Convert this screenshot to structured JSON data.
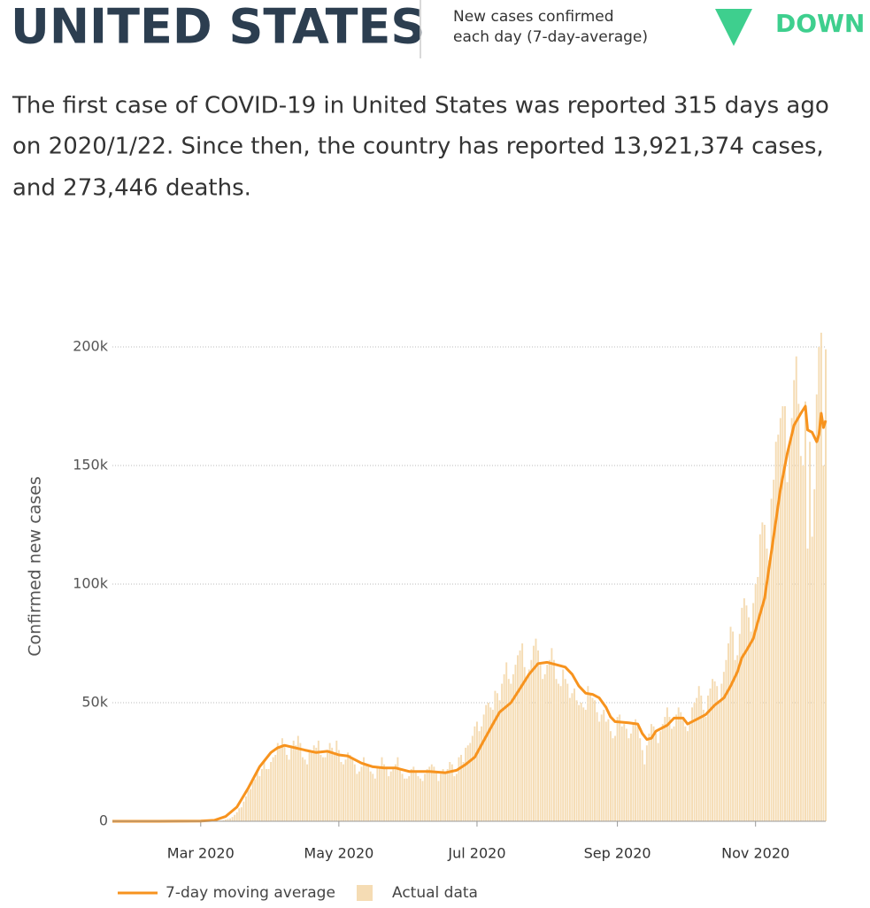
{
  "header": {
    "title": "UNITED STATES",
    "subtitle_lines": [
      "New cases confirmed",
      "each day (7-day-average)"
    ],
    "trend": "DOWN"
  },
  "description_lines": [
    "The first case of COVID-19 in United States was reported 315 days ago",
    "on 2020/1/22. Since then, the country has reported 13,921,374 cases,",
    "and 273,446 deaths."
  ],
  "chart_data": {
    "type": "line",
    "y_label": "Confirmed new cases",
    "xlim": [
      0,
      315
    ],
    "xticks": [
      {
        "value": 39,
        "label": "Mar 2020"
      },
      {
        "value": 100,
        "label": "May 2020"
      },
      {
        "value": 161,
        "label": "Jul 2020"
      },
      {
        "value": 223,
        "label": "Sep 2020"
      },
      {
        "value": 284,
        "label": "Nov 2020"
      }
    ],
    "ylim": [
      0,
      200000
    ],
    "yticks": [
      0,
      {
        "value": 50000,
        "label": "50k"
      },
      {
        "value": 100000,
        "label": "100k"
      },
      {
        "value": 150000,
        "label": "150k"
      },
      {
        "value": 200000,
        "label": "200k"
      }
    ],
    "grid": true,
    "series": [
      {
        "name": "7-day moving average",
        "color": "#f7931e",
        "kind": "line",
        "x": [
          0,
          20,
          39,
          45,
          50,
          55,
          60,
          65,
          70,
          73,
          76,
          85,
          90,
          95,
          100,
          104,
          110,
          115,
          120,
          125,
          131,
          140,
          147,
          152,
          156,
          160,
          164,
          168,
          171,
          176,
          180,
          184,
          188,
          192,
          196,
          200,
          203,
          206,
          209,
          212,
          215,
          218,
          220,
          222,
          228,
          232,
          234,
          236,
          238,
          240,
          245,
          248,
          252,
          254,
          258,
          262,
          266,
          270,
          273,
          276,
          278,
          280,
          283,
          285,
          288,
          292,
          295,
          298,
          301,
          304,
          306,
          307,
          309,
          311,
          312,
          313,
          314,
          315
        ],
        "values": [
          0,
          0,
          100,
          400,
          2000,
          6000,
          14000,
          23000,
          29000,
          31000,
          32000,
          30000,
          29000,
          29500,
          28000,
          27500,
          24500,
          23000,
          22500,
          22500,
          21000,
          21000,
          20500,
          21500,
          24000,
          27000,
          34000,
          41000,
          46000,
          50000,
          56000,
          62000,
          66500,
          67000,
          66000,
          65000,
          62000,
          57000,
          54000,
          53500,
          52000,
          48000,
          44000,
          42000,
          41500,
          41000,
          37000,
          34500,
          35000,
          38000,
          40500,
          43500,
          43500,
          41000,
          43000,
          45000,
          49000,
          52000,
          57000,
          63000,
          69000,
          72000,
          77000,
          84000,
          94000,
          120000,
          140000,
          155000,
          167000,
          172000,
          175000,
          165000,
          164000,
          160000,
          163000,
          172000,
          166000,
          169000
        ]
      },
      {
        "name": "Actual data",
        "color": "#f5dcb4",
        "kind": "bar",
        "x": [
          0,
          1,
          2,
          3,
          4,
          5,
          6,
          7,
          8,
          9,
          10,
          11,
          12,
          13,
          14,
          15,
          16,
          17,
          18,
          19,
          20,
          21,
          22,
          23,
          24,
          25,
          26,
          27,
          28,
          29,
          30,
          31,
          32,
          33,
          34,
          35,
          36,
          37,
          38,
          39,
          40,
          41,
          42,
          43,
          44,
          45,
          46,
          47,
          48,
          49,
          50,
          51,
          52,
          53,
          54,
          55,
          56,
          57,
          58,
          59,
          60,
          61,
          62,
          63,
          64,
          65,
          66,
          67,
          68,
          69,
          70,
          71,
          72,
          73,
          74,
          75,
          76,
          77,
          78,
          79,
          80,
          81,
          82,
          83,
          84,
          85,
          86,
          87,
          88,
          89,
          90,
          91,
          92,
          93,
          94,
          95,
          96,
          97,
          98,
          99,
          100,
          101,
          102,
          103,
          104,
          105,
          106,
          107,
          108,
          109,
          110,
          111,
          112,
          113,
          114,
          115,
          116,
          117,
          118,
          119,
          120,
          121,
          122,
          123,
          124,
          125,
          126,
          127,
          128,
          129,
          130,
          131,
          132,
          133,
          134,
          135,
          136,
          137,
          138,
          139,
          140,
          141,
          142,
          143,
          144,
          145,
          146,
          147,
          148,
          149,
          150,
          151,
          152,
          153,
          154,
          155,
          156,
          157,
          158,
          159,
          160,
          161,
          162,
          163,
          164,
          165,
          166,
          167,
          168,
          169,
          170,
          171,
          172,
          173,
          174,
          175,
          176,
          177,
          178,
          179,
          180,
          181,
          182,
          183,
          184,
          185,
          186,
          187,
          188,
          189,
          190,
          191,
          192,
          193,
          194,
          195,
          196,
          197,
          198,
          199,
          200,
          201,
          202,
          203,
          204,
          205,
          206,
          207,
          208,
          209,
          210,
          211,
          212,
          213,
          214,
          215,
          216,
          217,
          218,
          219,
          220,
          221,
          222,
          223,
          224,
          225,
          226,
          227,
          228,
          229,
          230,
          231,
          232,
          233,
          234,
          235,
          236,
          237,
          238,
          239,
          240,
          241,
          242,
          243,
          244,
          245,
          246,
          247,
          248,
          249,
          250,
          251,
          252,
          253,
          254,
          255,
          256,
          257,
          258,
          259,
          260,
          261,
          262,
          263,
          264,
          265,
          266,
          267,
          268,
          269,
          270,
          271,
          272,
          273,
          274,
          275,
          276,
          277,
          278,
          279,
          280,
          281,
          282,
          283,
          284,
          285,
          286,
          287,
          288,
          289,
          290,
          291,
          292,
          293,
          294,
          295,
          296,
          297,
          298,
          299,
          300,
          301,
          302,
          303,
          304,
          305,
          306,
          307,
          308,
          309,
          310,
          311,
          312,
          313,
          314,
          315
        ],
        "values": [
          1,
          0,
          1,
          0,
          3,
          0,
          0,
          1,
          0,
          2,
          0,
          0,
          0,
          1,
          0,
          0,
          0,
          0,
          0,
          0,
          0,
          0,
          0,
          0,
          0,
          1,
          0,
          0,
          0,
          0,
          2,
          0,
          0,
          0,
          0,
          0,
          1,
          0,
          2,
          8,
          20,
          30,
          40,
          60,
          70,
          90,
          150,
          200,
          300,
          400,
          700,
          1000,
          1200,
          1800,
          2700,
          3800,
          5500,
          5900,
          8300,
          10500,
          13000,
          13600,
          17000,
          17700,
          21000,
          19000,
          22000,
          26000,
          22000,
          22000,
          25000,
          27000,
          28000,
          33000,
          31000,
          35000,
          32000,
          28000,
          26000,
          32000,
          34000,
          32000,
          36000,
          33000,
          27000,
          26000,
          24000,
          30000,
          29000,
          32000,
          31000,
          34000,
          28000,
          27000,
          27000,
          29000,
          33000,
          31000,
          29000,
          34000,
          30000,
          25000,
          24000,
          26000,
          29000,
          28000,
          27000,
          24000,
          20000,
          21000,
          23000,
          27000,
          24000,
          24000,
          21000,
          20000,
          18000,
          23000,
          23000,
          27000,
          24000,
          23000,
          19000,
          21000,
          22000,
          24000,
          27000,
          22000,
          20000,
          18000,
          18000,
          19000,
          22000,
          23000,
          21000,
          19000,
          18000,
          17000,
          20000,
          22000,
          23000,
          24000,
          23000,
          21000,
          17000,
          20000,
          22000,
          21000,
          22000,
          25000,
          24000,
          19000,
          20000,
          27000,
          28000,
          25000,
          31000,
          32000,
          33000,
          36000,
          40000,
          42000,
          38000,
          40000,
          45000,
          49000,
          50000,
          48000,
          47000,
          55000,
          54000,
          51000,
          58000,
          62000,
          67000,
          60000,
          58000,
          62000,
          66000,
          70000,
          72000,
          75000,
          65000,
          61000,
          64000,
          68000,
          74000,
          77000,
          72000,
          66000,
          60000,
          62000,
          66000,
          68000,
          73000,
          68000,
          60000,
          58000,
          57000,
          64000,
          60000,
          58000,
          52000,
          54000,
          56000,
          51000,
          49000,
          50000,
          48000,
          47000,
          57000,
          54000,
          52000,
          51000,
          46000,
          42000,
          45000,
          47000,
          42000,
          43000,
          38000,
          35000,
          36000,
          44000,
          45000,
          40000,
          41000,
          39000,
          35000,
          37000,
          41000,
          43000,
          40000,
          35000,
          30000,
          24000,
          32000,
          37000,
          41000,
          40000,
          37000,
          33000,
          38000,
          41000,
          44000,
          48000,
          44000,
          39000,
          40000,
          45000,
          48000,
          46000,
          44000,
          40000,
          38000,
          42000,
          48000,
          50000,
          52000,
          57000,
          53000,
          47000,
          44000,
          53000,
          56000,
          60000,
          59000,
          57000,
          50000,
          58000,
          63000,
          68000,
          75000,
          82000,
          80000,
          68000,
          70000,
          79000,
          90000,
          94000,
          91000,
          86000,
          80000,
          92000,
          100000,
          103000,
          121000,
          126000,
          125000,
          115000,
          110000,
          136000,
          144000,
          160000,
          163000,
          170000,
          175000,
          175000,
          143000,
          160000,
          170000,
          186000,
          196000,
          176000,
          154000,
          150000,
          177000,
          115000,
          160000,
          120000,
          140000,
          180000,
          200000,
          206000,
          150000,
          199000
        ]
      }
    ]
  }
}
